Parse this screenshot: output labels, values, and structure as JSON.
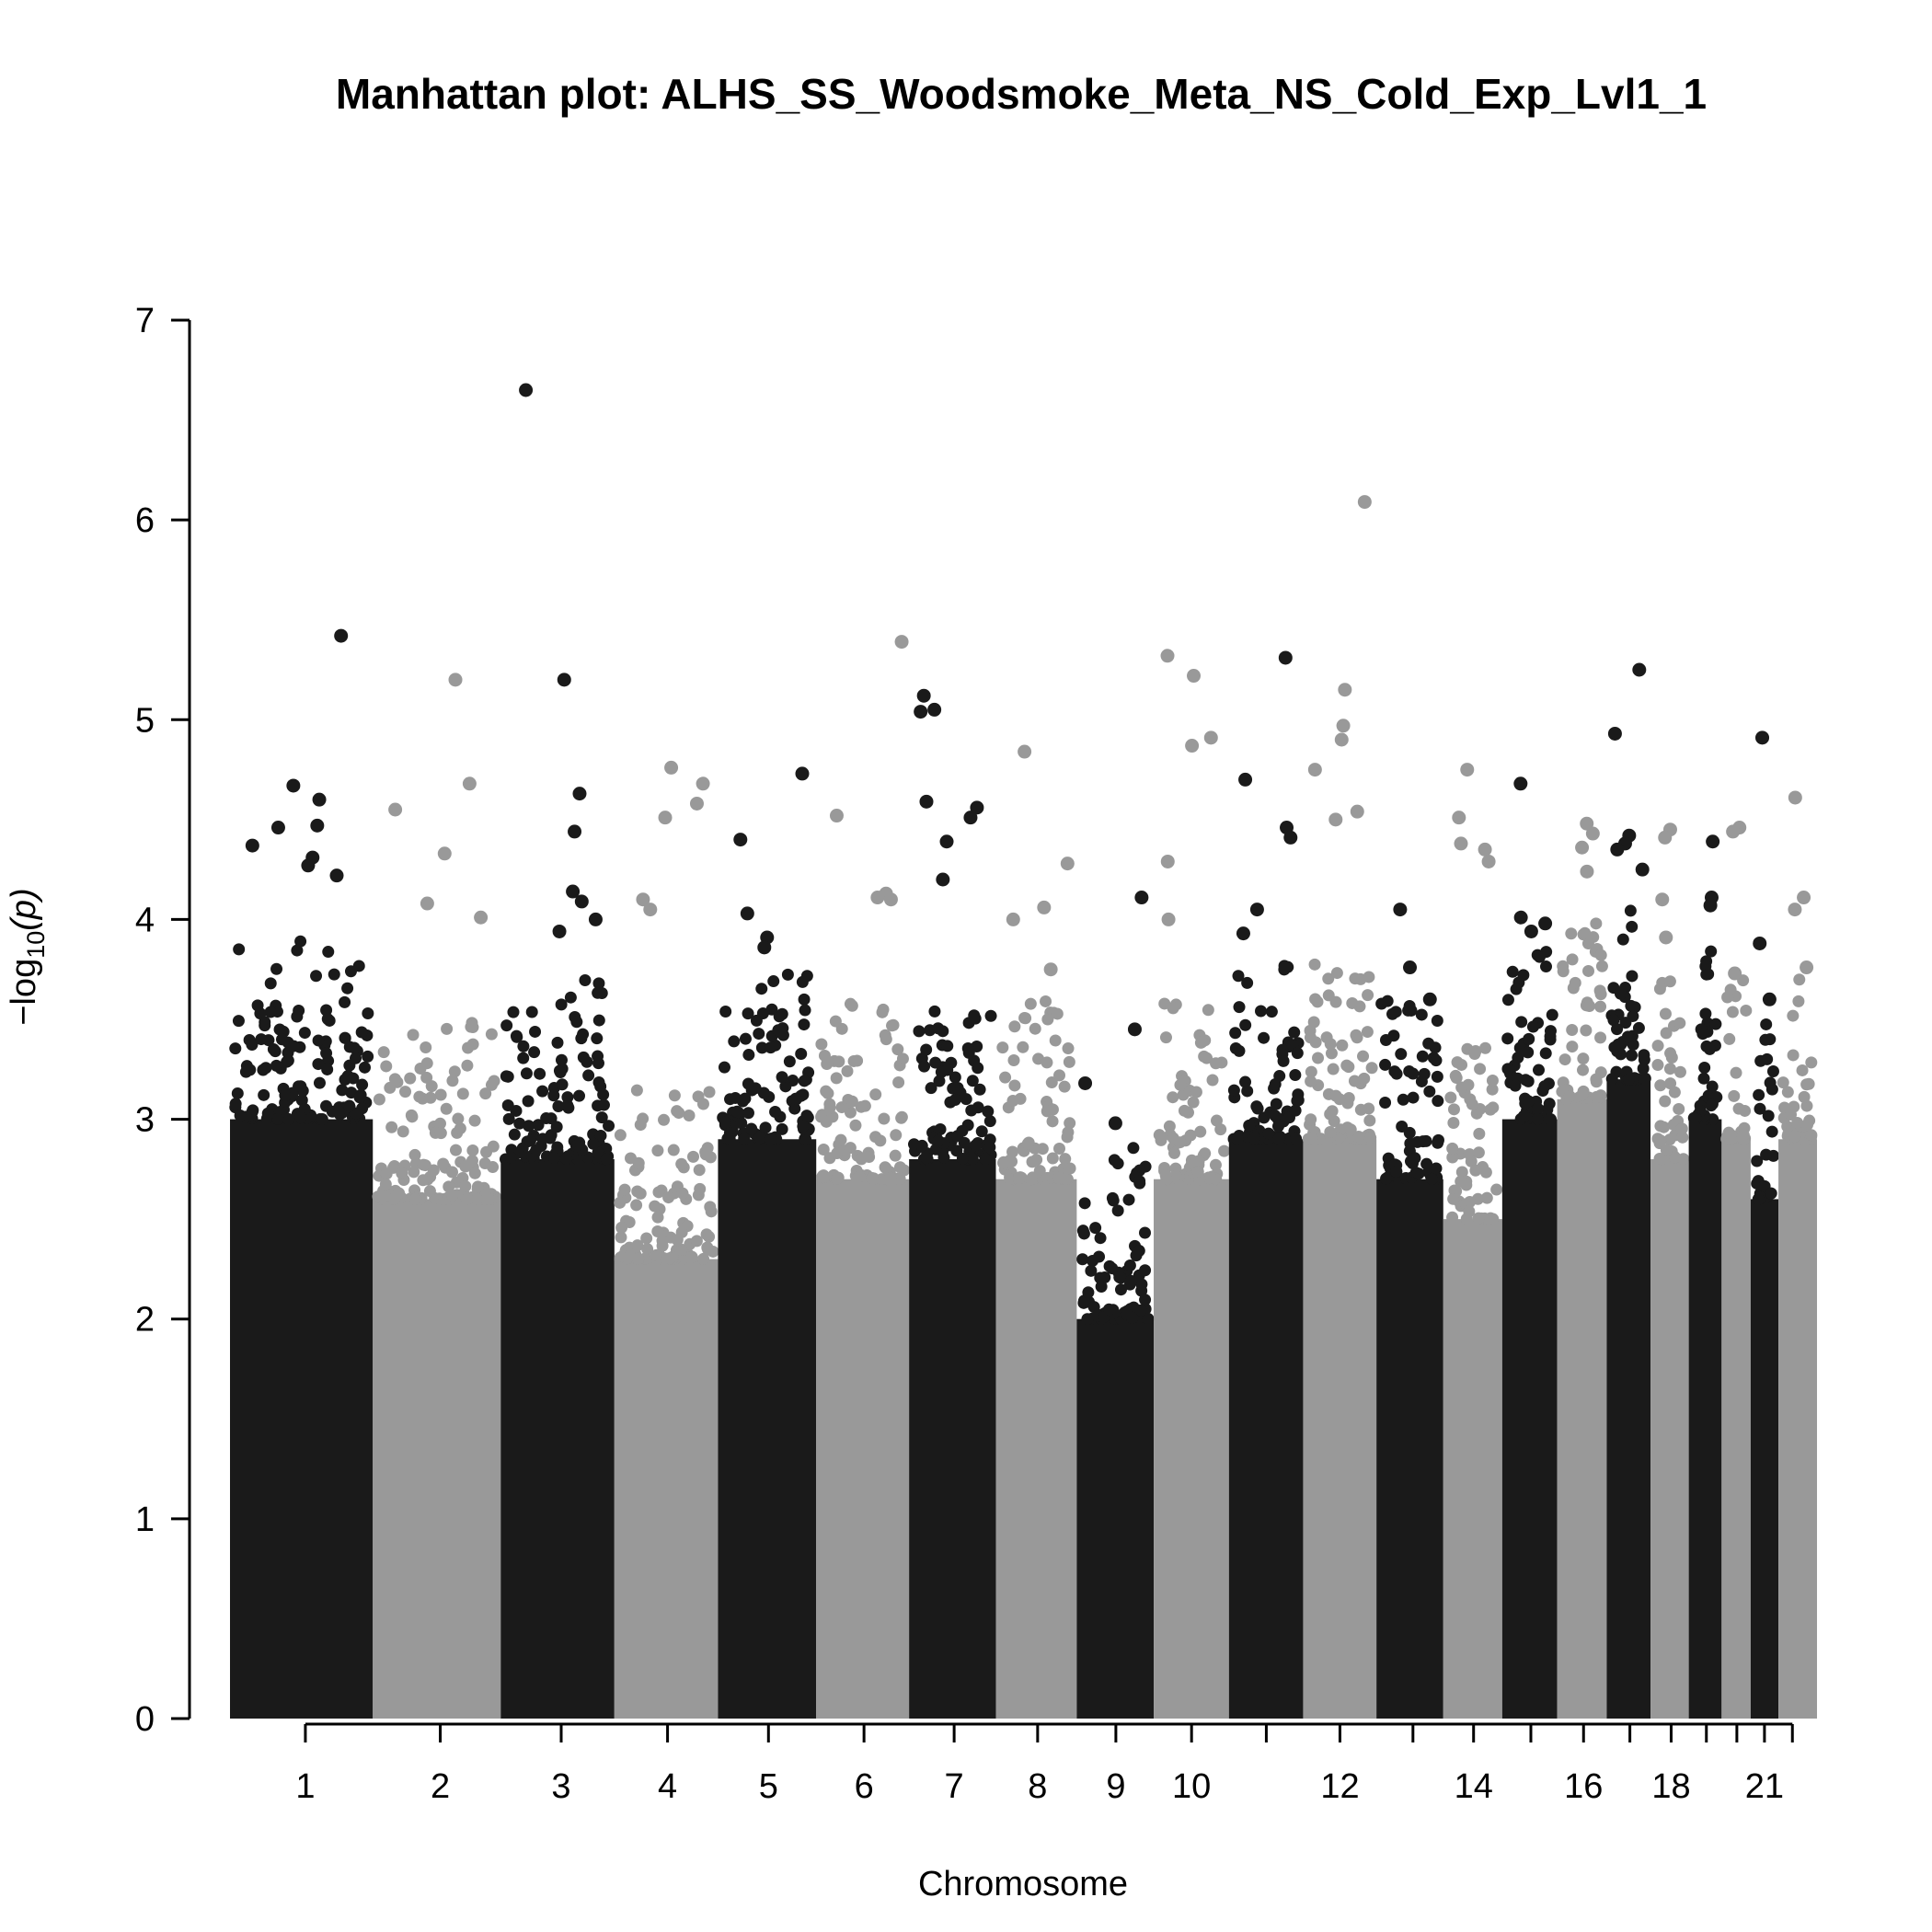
{
  "chart_data": {
    "type": "scatter",
    "title": "Manhattan plot: ALHS_SS_Woodsmoke_Meta_NS_Cold_Exp_Lvl1_1",
    "xlabel": "Chromosome",
    "ylabel_main": "−log",
    "ylabel_sub": "10",
    "ylabel_var": "(p)",
    "ylim": [
      0,
      7
    ],
    "y_ticks": [
      "0",
      "1",
      "2",
      "3",
      "4",
      "5",
      "6",
      "7"
    ],
    "colors": {
      "odd": "#1a1a1a",
      "even": "#999999"
    },
    "chromosomes": [
      {
        "chr": 1,
        "label": "1",
        "pos": 0.0475,
        "height": 3.0,
        "peaks": [
          5.42,
          4.67,
          4.6,
          4.47,
          4.46,
          4.37,
          4.31,
          4.27,
          4.22
        ]
      },
      {
        "chr": 2,
        "label": "2",
        "pos": 0.1325,
        "height": 2.6,
        "peaks": [
          5.2,
          4.68,
          4.55,
          4.33,
          4.08,
          4.01
        ]
      },
      {
        "chr": 3,
        "label": "3",
        "pos": 0.2087,
        "height": 2.8,
        "peaks": [
          6.65,
          5.2,
          4.63,
          4.44,
          4.14,
          4.09,
          4.0,
          3.94
        ]
      },
      {
        "chr": 4,
        "label": "4",
        "pos": 0.2757,
        "height": 2.3,
        "peaks": [
          4.76,
          4.68,
          4.58,
          4.51,
          4.1,
          4.05
        ]
      },
      {
        "chr": 5,
        "label": "5",
        "pos": 0.3393,
        "height": 2.9,
        "peaks": [
          4.73,
          4.4,
          4.03,
          3.91,
          3.86
        ]
      },
      {
        "chr": 6,
        "label": "6",
        "pos": 0.3995,
        "height": 2.7,
        "peaks": [
          5.39,
          4.52,
          4.13,
          4.11,
          4.1
        ]
      },
      {
        "chr": 7,
        "label": "7",
        "pos": 0.4563,
        "height": 2.8,
        "peaks": [
          5.12,
          5.05,
          5.04,
          4.59,
          4.56,
          4.51,
          4.39,
          4.2
        ]
      },
      {
        "chr": 8,
        "label": "8",
        "pos": 0.5089,
        "height": 2.7,
        "peaks": [
          4.84,
          4.28,
          4.06,
          4.0,
          3.75
        ]
      },
      {
        "chr": 9,
        "label": "9",
        "pos": 0.5582,
        "height": 2.0,
        "peaks": [
          4.11,
          3.45,
          3.18,
          2.98
        ]
      },
      {
        "chr": 10,
        "label": "10",
        "pos": 0.6059,
        "height": 2.7,
        "peaks": [
          5.32,
          5.22,
          4.91,
          4.87,
          4.29,
          4.0
        ]
      },
      {
        "chr": 11,
        "label": "",
        "pos": 0.653,
        "height": 2.9,
        "peaks": [
          5.31,
          4.7,
          4.46,
          4.41,
          4.05,
          3.93
        ]
      },
      {
        "chr": 12,
        "label": "12",
        "pos": 0.6994,
        "height": 2.9,
        "peaks": [
          6.09,
          5.15,
          4.97,
          4.9,
          4.75,
          4.54,
          4.5
        ]
      },
      {
        "chr": 13,
        "label": "",
        "pos": 0.7454,
        "height": 2.7,
        "peaks": [
          4.05,
          3.76,
          3.6
        ]
      },
      {
        "chr": 14,
        "label": "14",
        "pos": 0.7836,
        "height": 2.5,
        "peaks": [
          4.75,
          4.51,
          4.38,
          4.35,
          4.29
        ]
      },
      {
        "chr": 15,
        "label": "",
        "pos": 0.8197,
        "height": 3.0,
        "peaks": [
          4.68,
          4.01,
          3.98,
          3.94
        ]
      },
      {
        "chr": 16,
        "label": "16",
        "pos": 0.8529,
        "height": 3.1,
        "peaks": [
          4.48,
          4.43,
          4.36,
          4.24
        ]
      },
      {
        "chr": 17,
        "label": "",
        "pos": 0.8821,
        "height": 3.2,
        "peaks": [
          5.25,
          4.93,
          4.42,
          4.38,
          4.35,
          4.25
        ]
      },
      {
        "chr": 18,
        "label": "18",
        "pos": 0.9081,
        "height": 2.8,
        "peaks": [
          4.45,
          4.41,
          4.1,
          3.91
        ]
      },
      {
        "chr": 19,
        "label": "",
        "pos": 0.9303,
        "height": 3.0,
        "peaks": [
          4.39,
          4.11,
          4.07
        ]
      },
      {
        "chr": 20,
        "label": "",
        "pos": 0.9495,
        "height": 2.9,
        "peaks": [
          4.46,
          4.44,
          3.73
        ]
      },
      {
        "chr": 21,
        "label": "21",
        "pos": 0.9669,
        "height": 2.6,
        "peaks": [
          4.91,
          3.88,
          3.6
        ]
      },
      {
        "chr": 22,
        "label": "",
        "pos": 0.9845,
        "height": 2.9,
        "peaks": [
          4.61,
          4.11,
          4.05,
          3.76
        ]
      }
    ]
  }
}
